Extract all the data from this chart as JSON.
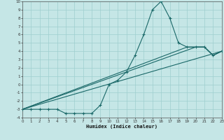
{
  "xlabel": "Humidex (Indice chaleur)",
  "xlim": [
    0,
    23
  ],
  "ylim": [
    -4,
    10
  ],
  "xticks": [
    0,
    1,
    2,
    3,
    4,
    5,
    6,
    7,
    8,
    9,
    10,
    11,
    12,
    13,
    14,
    15,
    16,
    17,
    18,
    19,
    20,
    21,
    22,
    23
  ],
  "yticks": [
    -4,
    -3,
    -2,
    -1,
    0,
    1,
    2,
    3,
    4,
    5,
    6,
    7,
    8,
    9,
    10
  ],
  "bg_color": "#c5e6e6",
  "grid_color": "#9ecece",
  "line_color": "#1a6868",
  "curve": {
    "x": [
      0,
      1,
      2,
      3,
      4,
      5,
      6,
      7,
      8,
      9,
      10,
      11,
      12,
      13,
      14,
      15,
      16,
      17,
      18,
      19,
      20,
      21,
      22,
      23
    ],
    "y": [
      -3,
      -3,
      -3,
      -3,
      -3,
      -3.5,
      -3.5,
      -3.5,
      -3.5,
      -2.5,
      0,
      0.5,
      1.5,
      3.5,
      6,
      9,
      10,
      8,
      5,
      4.5,
      4.5,
      4.5,
      3.5,
      4
    ]
  },
  "diag1": {
    "x": [
      0,
      23
    ],
    "y": [
      -3,
      4
    ]
  },
  "diag2": {
    "x": [
      0,
      19,
      20,
      21,
      22,
      23
    ],
    "y": [
      -3,
      4.5,
      4.5,
      4.5,
      3.5,
      4
    ]
  },
  "diag3": {
    "x": [
      0,
      20,
      21,
      22,
      23
    ],
    "y": [
      -3,
      4.5,
      4.5,
      3.5,
      4
    ]
  }
}
